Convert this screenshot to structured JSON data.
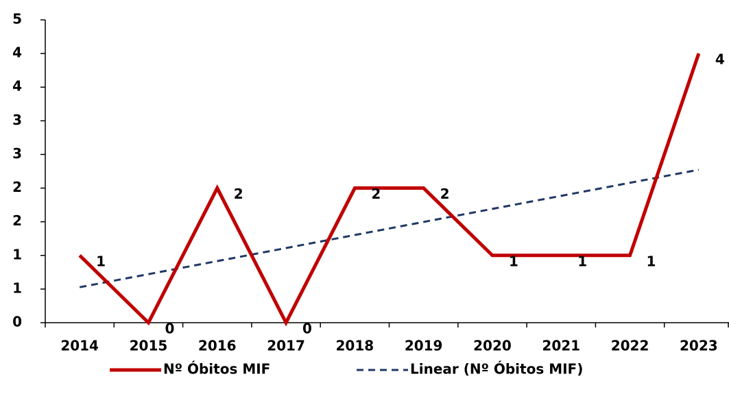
{
  "chart_data": {
    "type": "line",
    "categories": [
      "2014",
      "2015",
      "2016",
      "2017",
      "2018",
      "2019",
      "2020",
      "2021",
      "2022",
      "2023"
    ],
    "series": [
      {
        "name": "Nº Óbitos MIF",
        "color": "#c00000",
        "values": [
          1,
          0,
          2,
          0,
          2,
          2,
          1,
          1,
          1,
          4
        ]
      }
    ],
    "trendline": {
      "kind": "linear",
      "name": "Linear (Nº Óbitos MIF)",
      "color": "#1f3864"
    },
    "ylim": [
      0,
      4.5
    ],
    "yticks": [
      0,
      {
        "value": 0.5,
        "label": "1"
      },
      1,
      {
        "value": 1.5,
        "label": "2"
      },
      2,
      {
        "value": 2.5,
        "label": "3"
      },
      3,
      {
        "value": 3.5,
        "label": "4"
      },
      4,
      {
        "value": 4.5,
        "label": "5"
      }
    ],
    "legend": "bottom"
  }
}
